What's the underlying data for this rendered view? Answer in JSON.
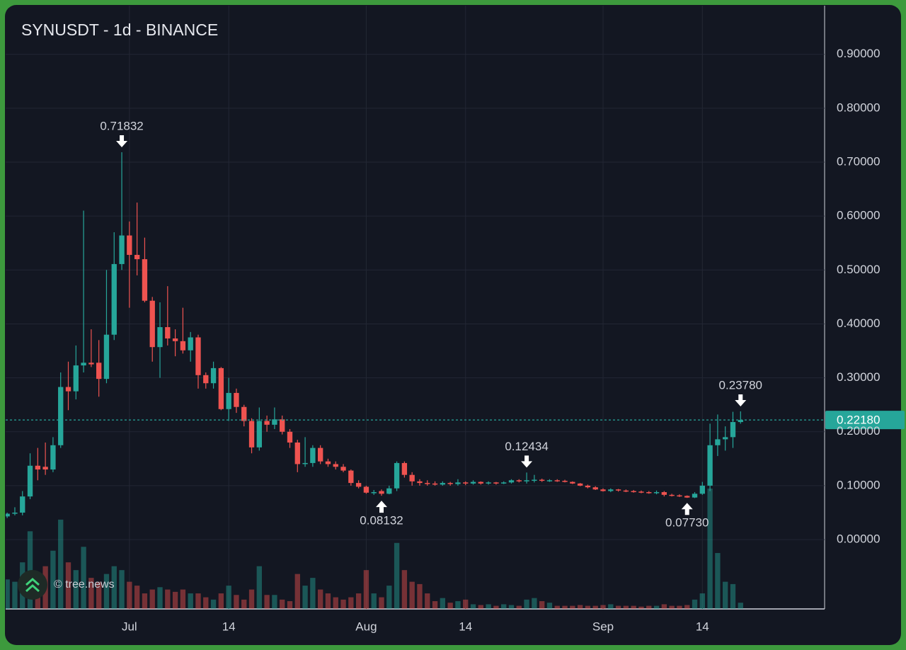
{
  "chart_data": {
    "type": "candlestick",
    "title": "SYNUSDT - 1d - BINANCE",
    "watermark": "© tree.news",
    "up_color": "#26a69a",
    "down_color": "#ef5350",
    "grid": true,
    "ylim": [
      -0.1286,
      0.9902
    ],
    "yticks": [
      {
        "value": 0.9,
        "label": "0.90000"
      },
      {
        "value": 0.8,
        "label": "0.80000"
      },
      {
        "value": 0.7,
        "label": "0.70000"
      },
      {
        "value": 0.6,
        "label": "0.60000"
      },
      {
        "value": 0.5,
        "label": "0.50000"
      },
      {
        "value": 0.4,
        "label": "0.40000"
      },
      {
        "value": 0.3,
        "label": "0.30000"
      },
      {
        "value": 0.2,
        "label": "0.20000"
      },
      {
        "value": 0.1,
        "label": "0.10000"
      },
      {
        "value": 0,
        "label": "0.00000"
      }
    ],
    "xlim": [
      -0.2,
      107
    ],
    "xticks": [
      {
        "value": 16,
        "label": "Jul"
      },
      {
        "value": 29,
        "label": "14"
      },
      {
        "value": 47,
        "label": "Aug"
      },
      {
        "value": 60,
        "label": "14"
      },
      {
        "value": 78,
        "label": "Sep"
      },
      {
        "value": 91,
        "label": "14"
      }
    ],
    "last_price": {
      "value": 0.2218,
      "label": "0.22180"
    },
    "open": [
      0.043,
      0.048,
      0.05,
      0.08,
      0.137,
      0.135,
      0.13,
      0.175,
      0.283,
      0.275,
      0.323,
      0.328,
      0.328,
      0.298,
      0.38,
      0.511,
      0.564,
      0.528,
      0.52,
      0.443,
      0.357,
      0.394,
      0.373,
      0.368,
      0.351,
      0.375,
      0.305,
      0.29,
      0.318,
      0.242,
      0.272,
      0.246,
      0.22,
      0.171,
      0.22,
      0.213,
      0.223,
      0.2,
      0.18,
      0.14,
      0.142,
      0.17,
      0.145,
      0.14,
      0.135,
      0.128,
      0.105,
      0.098,
      0.087,
      0.09,
      0.085,
      0.095,
      0.142,
      0.12,
      0.108,
      0.105,
      0.104,
      0.102,
      0.105,
      0.103,
      0.106,
      0.104,
      0.107,
      0.104,
      0.106,
      0.104,
      0.106,
      0.11,
      0.108,
      0.11,
      0.111,
      0.109,
      0.11,
      0.109,
      0.107,
      0.104,
      0.1,
      0.097,
      0.093,
      0.09,
      0.093,
      0.091,
      0.09,
      0.089,
      0.088,
      0.087,
      0.088,
      0.083,
      0.082,
      0.081,
      0.078,
      0.085,
      0.1,
      0.175,
      0.186,
      0.19,
      0.218
    ],
    "high": [
      0.05,
      0.06,
      0.09,
      0.16,
      0.17,
      0.18,
      0.19,
      0.31,
      0.33,
      0.36,
      0.61,
      0.39,
      0.37,
      0.5,
      0.57,
      0.71832,
      0.59,
      0.625,
      0.56,
      0.45,
      0.44,
      0.47,
      0.39,
      0.43,
      0.385,
      0.38,
      0.31,
      0.33,
      0.32,
      0.3,
      0.28,
      0.25,
      0.225,
      0.245,
      0.23,
      0.245,
      0.23,
      0.205,
      0.185,
      0.19,
      0.175,
      0.175,
      0.15,
      0.145,
      0.14,
      0.13,
      0.11,
      0.1,
      0.092,
      0.093,
      0.1,
      0.145,
      0.145,
      0.125,
      0.112,
      0.11,
      0.108,
      0.108,
      0.107,
      0.112,
      0.108,
      0.11,
      0.108,
      0.108,
      0.107,
      0.108,
      0.112,
      0.112,
      0.12434,
      0.12,
      0.113,
      0.112,
      0.112,
      0.111,
      0.108,
      0.105,
      0.102,
      0.099,
      0.095,
      0.095,
      0.094,
      0.093,
      0.092,
      0.091,
      0.09,
      0.091,
      0.09,
      0.085,
      0.084,
      0.082,
      0.088,
      0.107,
      0.215,
      0.232,
      0.21,
      0.237,
      0.2378
    ],
    "low": [
      0.04,
      0.045,
      0.045,
      0.075,
      0.11,
      0.12,
      0.125,
      0.17,
      0.24,
      0.26,
      0.31,
      0.32,
      0.265,
      0.29,
      0.37,
      0.5,
      0.43,
      0.49,
      0.44,
      0.33,
      0.3,
      0.36,
      0.34,
      0.345,
      0.33,
      0.28,
      0.28,
      0.28,
      0.24,
      0.22,
      0.235,
      0.21,
      0.16,
      0.165,
      0.2,
      0.205,
      0.195,
      0.17,
      0.125,
      0.135,
      0.135,
      0.14,
      0.135,
      0.13,
      0.125,
      0.1,
      0.095,
      0.085,
      0.083,
      0.08132,
      0.084,
      0.09,
      0.115,
      0.1,
      0.1,
      0.1,
      0.1,
      0.1,
      0.1,
      0.1,
      0.101,
      0.102,
      0.102,
      0.102,
      0.102,
      0.103,
      0.104,
      0.106,
      0.104,
      0.106,
      0.107,
      0.107,
      0.107,
      0.106,
      0.103,
      0.099,
      0.095,
      0.092,
      0.089,
      0.088,
      0.089,
      0.088,
      0.087,
      0.086,
      0.085,
      0.084,
      0.08,
      0.08,
      0.079,
      0.0773,
      0.077,
      0.083,
      0.09,
      0.155,
      0.165,
      0.17,
      0.215
    ],
    "close": [
      0.048,
      0.05,
      0.08,
      0.137,
      0.13,
      0.13,
      0.175,
      0.283,
      0.275,
      0.323,
      0.328,
      0.325,
      0.298,
      0.38,
      0.511,
      0.564,
      0.528,
      0.52,
      0.443,
      0.357,
      0.394,
      0.373,
      0.368,
      0.351,
      0.375,
      0.305,
      0.29,
      0.318,
      0.242,
      0.272,
      0.246,
      0.22,
      0.171,
      0.22,
      0.213,
      0.223,
      0.2,
      0.18,
      0.14,
      0.142,
      0.17,
      0.145,
      0.14,
      0.135,
      0.128,
      0.105,
      0.098,
      0.087,
      0.088,
      0.085,
      0.095,
      0.142,
      0.12,
      0.108,
      0.105,
      0.104,
      0.102,
      0.105,
      0.103,
      0.106,
      0.104,
      0.107,
      0.104,
      0.106,
      0.104,
      0.106,
      0.11,
      0.108,
      0.11,
      0.111,
      0.109,
      0.11,
      0.109,
      0.107,
      0.104,
      0.1,
      0.097,
      0.093,
      0.09,
      0.093,
      0.091,
      0.09,
      0.089,
      0.088,
      0.087,
      0.088,
      0.083,
      0.082,
      0.081,
      0.078,
      0.085,
      0.1,
      0.175,
      0.186,
      0.19,
      0.218,
      0.2218
    ],
    "volume": [
      38,
      35,
      60,
      100,
      45,
      55,
      75,
      115,
      60,
      50,
      80,
      40,
      35,
      45,
      55,
      50,
      35,
      30,
      20,
      25,
      28,
      25,
      22,
      25,
      20,
      20,
      15,
      12,
      20,
      30,
      18,
      12,
      25,
      55,
      18,
      18,
      12,
      10,
      45,
      30,
      40,
      25,
      20,
      15,
      12,
      15,
      20,
      50,
      20,
      15,
      30,
      85,
      50,
      35,
      32,
      20,
      10,
      14,
      8,
      10,
      12,
      6,
      5,
      6,
      4,
      6,
      5,
      4,
      12,
      14,
      10,
      8,
      4,
      4,
      4,
      5,
      4,
      4,
      5,
      6,
      4,
      4,
      4,
      3,
      4,
      4,
      6,
      4,
      4,
      5,
      12,
      20,
      155,
      72,
      35,
      32,
      8
    ],
    "high_labels": [
      null,
      null,
      null,
      null,
      null,
      null,
      null,
      null,
      null,
      null,
      null,
      null,
      null,
      null,
      null,
      "0.71832",
      null,
      null,
      null,
      null,
      null,
      null,
      null,
      null,
      null,
      null,
      null,
      null,
      null,
      null,
      null,
      null,
      null,
      null,
      null,
      null,
      null,
      null,
      null,
      null,
      null,
      null,
      null,
      null,
      null,
      null,
      null,
      null,
      null,
      null,
      null,
      null,
      null,
      null,
      null,
      null,
      null,
      null,
      null,
      null,
      null,
      null,
      null,
      null,
      null,
      null,
      null,
      null,
      "0.12434",
      null,
      null,
      null,
      null,
      null,
      null,
      null,
      null,
      null,
      null,
      null,
      null,
      null,
      null,
      null,
      null,
      null,
      null,
      null,
      null,
      null,
      null,
      null,
      null,
      null,
      null,
      null,
      "0.23780"
    ],
    "low_labels": [
      null,
      null,
      null,
      null,
      null,
      null,
      null,
      null,
      null,
      null,
      null,
      null,
      null,
      null,
      null,
      null,
      null,
      null,
      null,
      null,
      null,
      null,
      null,
      null,
      null,
      null,
      null,
      null,
      null,
      null,
      null,
      null,
      null,
      null,
      null,
      null,
      null,
      null,
      null,
      null,
      null,
      null,
      null,
      null,
      null,
      null,
      null,
      null,
      null,
      "0.08132",
      null,
      null,
      null,
      null,
      null,
      null,
      null,
      null,
      null,
      null,
      null,
      null,
      null,
      null,
      null,
      null,
      null,
      null,
      null,
      null,
      null,
      null,
      null,
      null,
      null,
      null,
      null,
      null,
      null,
      null,
      null,
      null,
      null,
      null,
      null,
      null,
      null,
      null,
      null,
      "0.07730",
      null,
      null,
      null,
      null,
      null,
      null,
      null
    ]
  }
}
